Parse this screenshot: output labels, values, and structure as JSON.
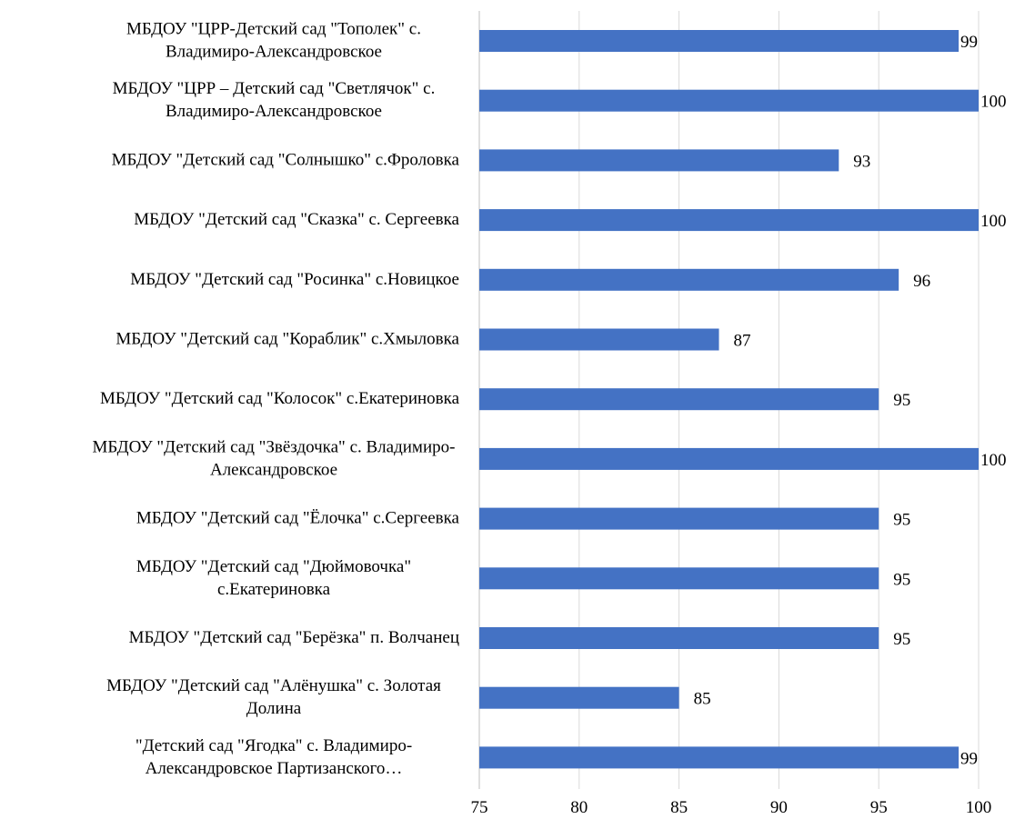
{
  "chart_data": {
    "type": "bar",
    "orientation": "horizontal",
    "title": "",
    "xlabel": "",
    "ylabel": "",
    "categories": [
      [
        "МБДОУ \"ЦРР-Детский сад \"Тополек\" с.",
        "Владимиро-Александровское"
      ],
      [
        "МБДОУ \"ЦРР – Детский сад \"Светлячок\" с.",
        "Владимиро-Александровское"
      ],
      [
        "МБДОУ \"Детский сад \"Солнышко\" с.Фроловка"
      ],
      [
        "МБДОУ \"Детский сад \"Сказка\" с. Сергеевка"
      ],
      [
        "МБДОУ \"Детский сад \"Росинка\" с.Новицкое"
      ],
      [
        "МБДОУ \"Детский сад \"Кораблик\" с.Хмыловка"
      ],
      [
        "МБДОУ \"Детский сад \"Колосок\" с.Екатериновка"
      ],
      [
        "МБДОУ \"Детский сад \"Звёздочка\" с. Владимиро-",
        "Александровское"
      ],
      [
        "МБДОУ \"Детский сад \"Ёлочка\" с.Сергеевка"
      ],
      [
        "МБДОУ \"Детский сад \"Дюймовочка\"",
        "с.Екатериновка"
      ],
      [
        "МБДОУ \"Детский сад \"Берёзка\" п. Волчанец"
      ],
      [
        "МБДОУ \"Детский сад \"Алёнушка\"  с. Золотая",
        "Долина"
      ],
      [
        "\"Детский сад \"Ягодка\" с. Владимиро-",
        "Александровское Партизанского…"
      ]
    ],
    "values": [
      99,
      100,
      93,
      100,
      96,
      87,
      95,
      100,
      95,
      95,
      95,
      85,
      99
    ],
    "xlim": [
      75,
      100
    ],
    "xticks": [
      75,
      80,
      85,
      90,
      95,
      100
    ],
    "grid": true,
    "bar_color": "#4472C4",
    "data_labels": true
  }
}
